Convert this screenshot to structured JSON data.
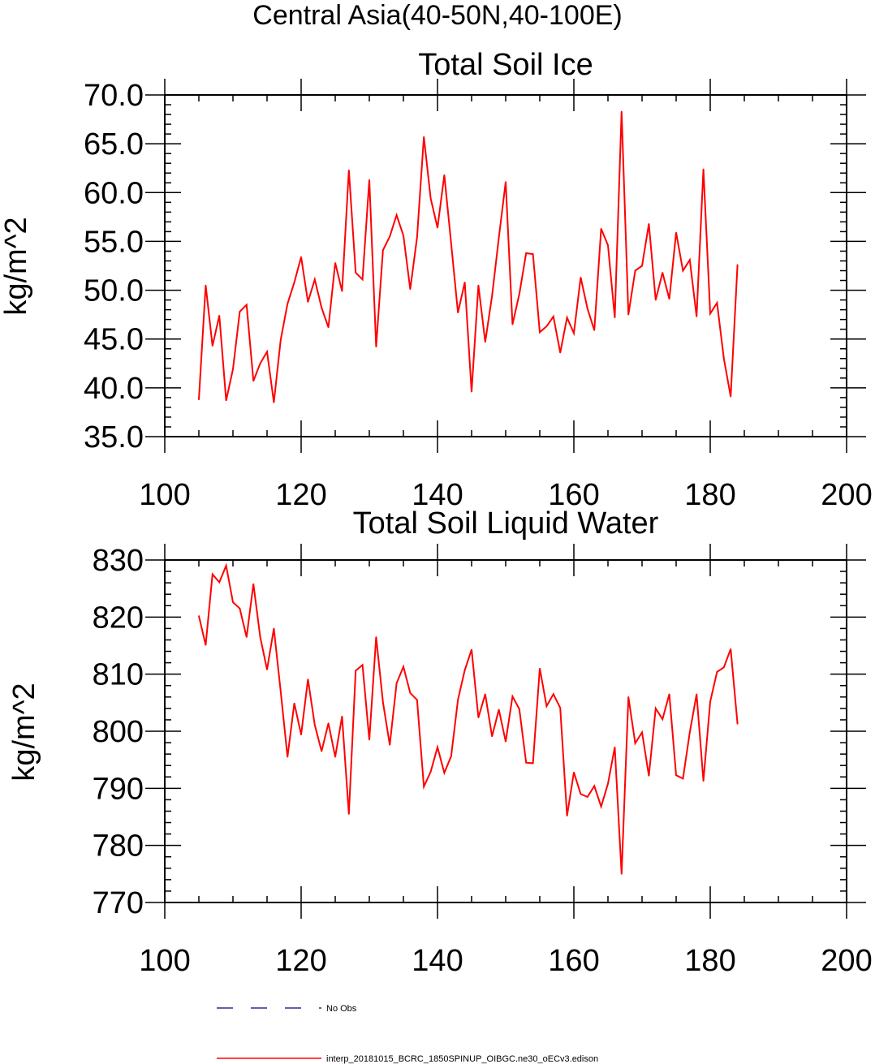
{
  "figure": {
    "title": "Central Asia(40-50N,40-100E)"
  },
  "chart_data": [
    {
      "type": "line",
      "title": "Total Soil Ice",
      "xlabel": "",
      "ylabel": "kg/m^2",
      "xlim": [
        100,
        200
      ],
      "ylim": [
        35,
        70
      ],
      "x_ticks": [
        "100",
        "120",
        "140",
        "160",
        "180",
        "200"
      ],
      "y_ticks": [
        "35.0",
        "40.0",
        "45.0",
        "50.0",
        "55.0",
        "60.0",
        "65.0",
        "70.0"
      ],
      "x_major_step": 20,
      "x_minor_step": 5,
      "y_major_step": 5,
      "y_minor_step": 1,
      "grid": false,
      "series": [
        {
          "color": "#ff0000",
          "x": [
            105,
            106,
            107,
            108,
            109,
            110,
            111,
            112,
            113,
            114,
            115,
            116,
            117,
            118,
            119,
            120,
            121,
            122,
            123,
            124,
            125,
            126,
            127,
            128,
            129,
            130,
            131,
            132,
            133,
            134,
            135,
            136,
            137,
            138,
            139,
            140,
            141,
            142,
            143,
            144,
            145,
            146,
            147,
            148,
            149,
            150,
            151,
            152,
            153,
            154,
            155,
            156,
            157,
            158,
            159,
            160,
            161,
            162,
            163,
            164,
            165,
            166,
            167,
            168,
            169,
            170,
            171,
            172,
            173,
            174,
            175,
            176,
            177,
            178,
            179,
            180,
            181,
            182,
            183,
            184
          ],
          "values": [
            38.8,
            50.5,
            44.3,
            47.4,
            38.7,
            41.9,
            47.8,
            48.5,
            40.7,
            42.5,
            43.7,
            38.5,
            44.9,
            48.6,
            50.8,
            53.4,
            48.8,
            51.1,
            48.2,
            46.2,
            52.8,
            49.9,
            62.3,
            51.8,
            51.1,
            61.3,
            44.2,
            54.1,
            55.5,
            57.7,
            55.6,
            50.1,
            55.4,
            65.7,
            59.4,
            56.4,
            61.8,
            54.8,
            47.7,
            50.8,
            39.6,
            50.5,
            44.7,
            49.4,
            55.4,
            61.1,
            46.5,
            49.6,
            53.8,
            53.7,
            45.7,
            46.3,
            47.3,
            43.6,
            47.2,
            45.6,
            51.3,
            48.1,
            45.9,
            56.3,
            54.6,
            47.2,
            68.3,
            47.5,
            52.0,
            52.5,
            56.8,
            49.0,
            51.8,
            49.1,
            55.9,
            52.0,
            53.1,
            47.3,
            62.4,
            47.6,
            48.7,
            43.0,
            39.1,
            52.6
          ]
        }
      ]
    },
    {
      "type": "line",
      "title": "Total Soil Liquid Water",
      "xlabel": "",
      "ylabel": "kg/m^2",
      "xlim": [
        100,
        200
      ],
      "ylim": [
        770,
        830
      ],
      "x_ticks": [
        "100",
        "120",
        "140",
        "160",
        "180",
        "200"
      ],
      "y_ticks": [
        "770",
        "780",
        "790",
        "800",
        "810",
        "820",
        "830"
      ],
      "x_major_step": 20,
      "x_minor_step": 5,
      "y_major_step": 10,
      "y_minor_step": 2,
      "grid": false,
      "series": [
        {
          "color": "#ff0000",
          "x": [
            105,
            106,
            107,
            108,
            109,
            110,
            111,
            112,
            113,
            114,
            115,
            116,
            117,
            118,
            119,
            120,
            121,
            122,
            123,
            124,
            125,
            126,
            127,
            128,
            129,
            130,
            131,
            132,
            133,
            134,
            135,
            136,
            137,
            138,
            139,
            140,
            141,
            142,
            143,
            144,
            145,
            146,
            147,
            148,
            149,
            150,
            151,
            152,
            153,
            154,
            155,
            156,
            157,
            158,
            159,
            160,
            161,
            162,
            163,
            164,
            165,
            166,
            167,
            168,
            169,
            170,
            171,
            172,
            173,
            174,
            175,
            176,
            177,
            178,
            179,
            180,
            181,
            182,
            183,
            184
          ],
          "values": [
            820.2,
            815.1,
            827.5,
            826.1,
            829.0,
            822.6,
            821.5,
            816.5,
            825.8,
            816.5,
            810.8,
            818.0,
            807.0,
            795.5,
            804.9,
            799.4,
            809.1,
            801.1,
            796.5,
            801.4,
            795.5,
            802.6,
            785.5,
            810.6,
            811.6,
            798.5,
            816.5,
            805.1,
            797.6,
            808.4,
            811.3,
            806.7,
            805.5,
            790.3,
            792.9,
            797.2,
            792.7,
            795.6,
            805.5,
            810.7,
            814.3,
            802.4,
            806.5,
            799.1,
            803.8,
            798.2,
            806.1,
            803.9,
            794.5,
            794.4,
            811.0,
            804.4,
            806.5,
            804.1,
            785.2,
            792.8,
            789.0,
            788.5,
            790.4,
            786.8,
            790.8,
            797.2,
            775.0,
            806.0,
            797.9,
            799.8,
            792.2,
            804.0,
            802.1,
            806.5,
            792.3,
            791.7,
            799.8,
            806.5,
            791.3,
            805.2,
            810.4,
            811.2,
            814.4,
            801.3
          ]
        }
      ]
    }
  ],
  "legend": {
    "items": [
      {
        "label": "No Obs",
        "color": "#000080",
        "style": "dashed"
      },
      {
        "label": "interp_20181015_BCRC_1850SPINUP_OIBGC.ne30_oECv3.edison",
        "color": "#ff0000",
        "style": "solid"
      }
    ]
  }
}
